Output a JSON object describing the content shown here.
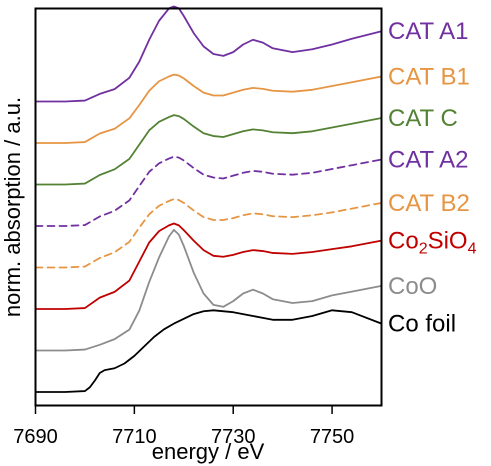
{
  "chart_data": {
    "type": "line",
    "xlabel": "energy / eV",
    "ylabel": "norm. absorption / a.u.",
    "xlim": [
      7690,
      7760
    ],
    "x_ticks": [
      7690,
      7710,
      7730,
      7750
    ],
    "x_tick_labels": [
      "7690",
      "7710",
      "7730",
      "7750"
    ],
    "y_ticks_shown": false,
    "series_stacked_with_vertical_offsets": true,
    "series": [
      {
        "name": "CAT A1",
        "label_main": "CAT A1",
        "label_sub": "",
        "label_tail": "",
        "color": "#7030a0",
        "dash": "solid",
        "offset": 7.0,
        "x": [
          7690,
          7696,
          7700,
          7703,
          7706,
          7709,
          7711,
          7713,
          7715,
          7717,
          7718,
          7719,
          7720,
          7722,
          7724,
          7726,
          7728,
          7730,
          7732,
          7734,
          7736,
          7738,
          7742,
          7746,
          7750,
          7754,
          7760
        ],
        "y": [
          0.0,
          0.0,
          0.01,
          0.08,
          0.13,
          0.25,
          0.42,
          0.65,
          0.85,
          0.98,
          1.0,
          0.98,
          0.9,
          0.72,
          0.58,
          0.5,
          0.48,
          0.52,
          0.6,
          0.65,
          0.62,
          0.56,
          0.52,
          0.55,
          0.6,
          0.66,
          0.74
        ]
      },
      {
        "name": "CAT B1",
        "label_main": "CAT B1",
        "label_sub": "",
        "label_tail": "",
        "color": "#e69543",
        "dash": "solid",
        "offset": 6.0,
        "x": [
          7690,
          7696,
          7700,
          7703,
          7706,
          7709,
          7711,
          7713,
          7715,
          7717,
          7718,
          7719,
          7720,
          7722,
          7724,
          7726,
          7728,
          7730,
          7732,
          7734,
          7736,
          7738,
          7742,
          7746,
          7750,
          7754,
          7760
        ],
        "y": [
          0.0,
          0.0,
          0.01,
          0.1,
          0.15,
          0.26,
          0.4,
          0.55,
          0.65,
          0.7,
          0.72,
          0.71,
          0.68,
          0.6,
          0.53,
          0.5,
          0.5,
          0.53,
          0.56,
          0.58,
          0.57,
          0.55,
          0.54,
          0.56,
          0.6,
          0.64,
          0.7
        ]
      },
      {
        "name": "CAT C",
        "label_main": "CAT C",
        "label_sub": "",
        "label_tail": "",
        "color": "#548235",
        "dash": "solid",
        "offset": 5.0,
        "x": [
          7690,
          7696,
          7700,
          7703,
          7706,
          7709,
          7711,
          7713,
          7715,
          7717,
          7718,
          7719,
          7720,
          7722,
          7724,
          7726,
          7728,
          7730,
          7732,
          7734,
          7736,
          7738,
          7742,
          7746,
          7750,
          7754,
          7760
        ],
        "y": [
          0.0,
          0.0,
          0.01,
          0.1,
          0.16,
          0.27,
          0.42,
          0.57,
          0.66,
          0.71,
          0.73,
          0.72,
          0.69,
          0.61,
          0.54,
          0.51,
          0.5,
          0.53,
          0.56,
          0.58,
          0.57,
          0.55,
          0.54,
          0.56,
          0.6,
          0.64,
          0.7
        ]
      },
      {
        "name": "CAT A2",
        "label_main": "CAT A2",
        "label_sub": "",
        "label_tail": "",
        "color": "#7030a0",
        "dash": "dashed",
        "offset": 4.0,
        "x": [
          7690,
          7696,
          7700,
          7703,
          7706,
          7709,
          7711,
          7713,
          7715,
          7717,
          7718,
          7719,
          7720,
          7722,
          7724,
          7726,
          7728,
          7730,
          7732,
          7734,
          7736,
          7738,
          7742,
          7746,
          7750,
          7754,
          7760
        ],
        "y": [
          0.0,
          0.0,
          0.01,
          0.1,
          0.16,
          0.27,
          0.42,
          0.57,
          0.66,
          0.71,
          0.73,
          0.72,
          0.69,
          0.61,
          0.54,
          0.51,
          0.5,
          0.53,
          0.56,
          0.58,
          0.57,
          0.55,
          0.54,
          0.56,
          0.6,
          0.64,
          0.7
        ]
      },
      {
        "name": "CAT B2",
        "label_main": "CAT B2",
        "label_sub": "",
        "label_tail": "",
        "color": "#e69543",
        "dash": "dashed",
        "offset": 3.0,
        "x": [
          7690,
          7696,
          7700,
          7703,
          7706,
          7709,
          7711,
          7713,
          7715,
          7717,
          7718,
          7719,
          7720,
          7722,
          7724,
          7726,
          7728,
          7730,
          7732,
          7734,
          7736,
          7738,
          7742,
          7746,
          7750,
          7754,
          7760
        ],
        "y": [
          0.0,
          0.0,
          0.01,
          0.1,
          0.16,
          0.27,
          0.42,
          0.56,
          0.65,
          0.7,
          0.72,
          0.71,
          0.68,
          0.6,
          0.53,
          0.5,
          0.5,
          0.52,
          0.55,
          0.57,
          0.56,
          0.54,
          0.53,
          0.55,
          0.58,
          0.62,
          0.68
        ]
      },
      {
        "name": "Co2SiO4",
        "label_main": "Co",
        "label_sub": "2",
        "label_tail": "SiO",
        "label_sub2": "4",
        "color": "#c00000",
        "dash": "solid",
        "offset": 2.0,
        "x": [
          7690,
          7696,
          7700,
          7703,
          7706,
          7709,
          7711,
          7713,
          7715,
          7717,
          7718,
          7719,
          7720,
          7722,
          7724,
          7726,
          7728,
          7730,
          7732,
          7734,
          7736,
          7738,
          7742,
          7746,
          7750,
          7754,
          7760
        ],
        "y": [
          0.0,
          0.0,
          0.01,
          0.12,
          0.18,
          0.3,
          0.5,
          0.7,
          0.82,
          0.88,
          0.9,
          0.88,
          0.83,
          0.72,
          0.62,
          0.56,
          0.55,
          0.57,
          0.6,
          0.62,
          0.61,
          0.59,
          0.58,
          0.6,
          0.63,
          0.66,
          0.72
        ]
      },
      {
        "name": "CoO",
        "label_main": "CoO",
        "label_sub": "",
        "label_tail": "",
        "color": "#8c8c8c",
        "dash": "solid",
        "offset": 1.0,
        "x": [
          7690,
          7696,
          7700,
          7703,
          7706,
          7709,
          7711,
          7713,
          7715,
          7717,
          7718,
          7719,
          7720,
          7722,
          7724,
          7726,
          7728,
          7730,
          7732,
          7734,
          7736,
          7738,
          7742,
          7746,
          7750,
          7754,
          7760
        ],
        "y": [
          0.0,
          0.0,
          0.01,
          0.06,
          0.12,
          0.22,
          0.42,
          0.72,
          0.98,
          1.2,
          1.27,
          1.22,
          1.1,
          0.82,
          0.6,
          0.48,
          0.46,
          0.52,
          0.6,
          0.64,
          0.6,
          0.54,
          0.5,
          0.52,
          0.58,
          0.62,
          0.68
        ]
      },
      {
        "name": "Co foil",
        "label_main": "Co foil",
        "label_sub": "",
        "label_tail": "",
        "color": "#000000",
        "dash": "solid",
        "offset": 0.0,
        "x": [
          7690,
          7696,
          7700,
          7701,
          7702,
          7703,
          7704,
          7706,
          7708,
          7710,
          7712,
          7714,
          7716,
          7718,
          7720,
          7722,
          7724,
          7726,
          7730,
          7734,
          7738,
          7742,
          7746,
          7750,
          7754,
          7760
        ],
        "y": [
          0.0,
          0.0,
          0.01,
          0.05,
          0.12,
          0.2,
          0.23,
          0.25,
          0.3,
          0.38,
          0.48,
          0.58,
          0.66,
          0.72,
          0.77,
          0.82,
          0.85,
          0.86,
          0.84,
          0.8,
          0.76,
          0.76,
          0.8,
          0.86,
          0.84,
          0.72
        ]
      }
    ]
  }
}
